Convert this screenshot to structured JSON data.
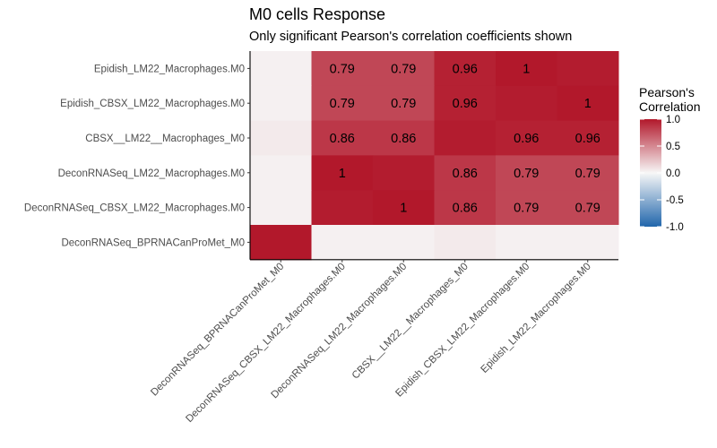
{
  "chart_data": {
    "type": "heatmap",
    "title": "M0 cells Response",
    "subtitle": "Only significant Pearson's correlation coefficients shown",
    "x_categories": [
      "DeconRNASeq_BPRNACanProMet_M0",
      "DeconRNASeq_CBSX_LM22_Macrophages.M0",
      "DeconRNASeq_LM22_Macrophages.M0",
      "CBSX__LM22__Macrophages_M0",
      "Epidish_CBSX_LM22_Macrophages.M0",
      "Epidish_LM22_Macrophages.M0"
    ],
    "y_categories": [
      "Epidish_LM22_Macrophages.M0",
      "Epidish_CBSX_LM22_Macrophages.M0",
      "CBSX__LM22__Macrophages_M0",
      "DeconRNASeq_LM22_Macrophages.M0",
      "DeconRNASeq_CBSX_LM22_Macrophages.M0",
      "DeconRNASeq_BPRNACanProMet_M0"
    ],
    "values": [
      [
        0.03,
        0.79,
        0.79,
        0.96,
        1,
        0.98
      ],
      [
        0.03,
        0.79,
        0.79,
        0.96,
        0.98,
        1
      ],
      [
        0.06,
        0.86,
        0.86,
        0.98,
        0.96,
        0.96
      ],
      [
        0.03,
        1,
        0.98,
        0.86,
        0.79,
        0.79
      ],
      [
        0.03,
        0.98,
        1,
        0.86,
        0.79,
        0.79
      ],
      [
        1,
        0.03,
        0.03,
        0.06,
        0.03,
        0.03
      ]
    ],
    "labels": [
      [
        "",
        "0.79",
        "0.79",
        "0.96",
        "1",
        ""
      ],
      [
        "",
        "0.79",
        "0.79",
        "0.96",
        "",
        "1"
      ],
      [
        "",
        "0.86",
        "0.86",
        "",
        "0.96",
        "0.96"
      ],
      [
        "",
        "1",
        "",
        "0.86",
        "0.79",
        "0.79"
      ],
      [
        "",
        "",
        "1",
        "0.86",
        "0.79",
        "0.79"
      ],
      [
        "",
        "",
        "",
        "",
        "",
        ""
      ]
    ],
    "legend": {
      "title_line1": "Pearson's",
      "title_line2": "Correlation",
      "ticks": [
        1.0,
        0.5,
        0.0,
        -0.5,
        -1.0
      ],
      "tick_labels": [
        "1.0",
        "0.5",
        "0.0",
        "-0.5",
        "-1.0"
      ],
      "limits": [
        -1,
        1
      ],
      "colors": {
        "low": "#2166ac",
        "mid": "#f7f7f7",
        "high": "#b2182b"
      }
    }
  }
}
